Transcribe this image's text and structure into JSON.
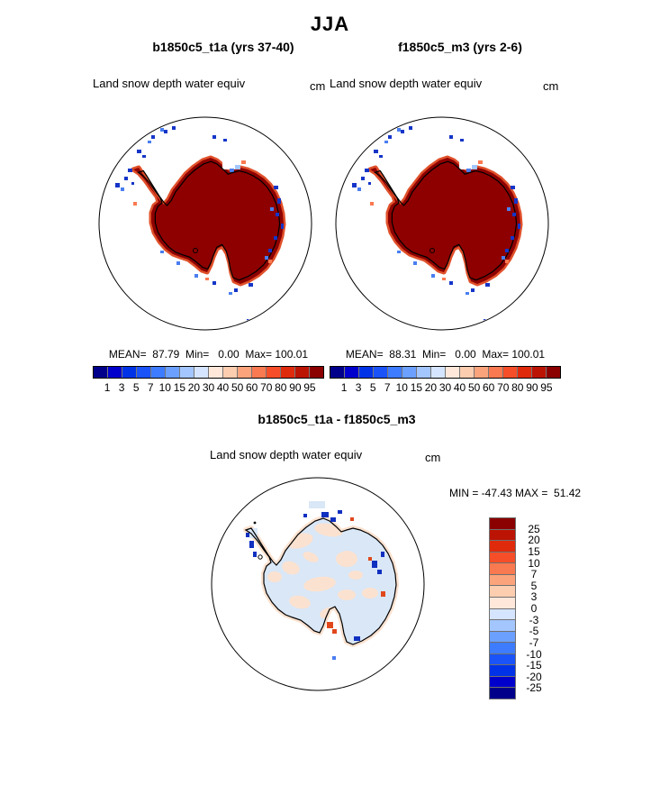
{
  "title": "JJA",
  "panels": {
    "left": {
      "title": "b1850c5_t1a (yrs 37-40)",
      "field_label": "Land snow depth water equiv",
      "units": "cm",
      "stats": "MEAN=  87.79  Min=   0.00  Max= 100.01"
    },
    "right": {
      "title": "f1850c5_m3 (yrs 2-6)",
      "field_label": "Land snow depth water equiv",
      "units": "cm",
      "stats": "MEAN=  88.31  Min=   0.00  Max= 100.01"
    },
    "diff": {
      "title": "b1850c5_t1a - f1850c5_m3",
      "field_label": "Land snow depth water equiv",
      "units": "cm",
      "stats": "MIN = -47.43 MAX =  51.42"
    }
  },
  "colorbar": {
    "tick_labels": [
      "1",
      "3",
      "5",
      "7",
      "10",
      "15",
      "20",
      "30",
      "40",
      "50",
      "60",
      "70",
      "80",
      "90",
      "95"
    ],
    "colors": [
      "#00008b",
      "#0000cd",
      "#0033e8",
      "#1a53f7",
      "#3d7cff",
      "#6ba0ff",
      "#a3c6ff",
      "#d5e5ff",
      "#ffe8da",
      "#fdcdb0",
      "#fba47c",
      "#f97950",
      "#f54e28",
      "#df2a0c",
      "#bc1404",
      "#8b0000"
    ]
  },
  "diff_colorbar": {
    "tick_labels": [
      "25",
      "20",
      "15",
      "10",
      "7",
      "5",
      "3",
      "0",
      "-3",
      "-5",
      "-7",
      "-10",
      "-15",
      "-20",
      "-25"
    ],
    "colors": [
      "#8b0000",
      "#bc1404",
      "#df2a0c",
      "#f54e28",
      "#f97950",
      "#fba47c",
      "#fdcdb0",
      "#ffe8da",
      "#d5e5ff",
      "#a3c6ff",
      "#6ba0ff",
      "#3d7cff",
      "#1a53f7",
      "#0033e8",
      "#0000cd",
      "#00008b"
    ]
  },
  "map_colors": {
    "continent_fill": "#8e0000",
    "continent_fringe": "#e0502a",
    "coastline": "#000000",
    "speck_dark_blue": "#1535c8",
    "speck_mid_blue": "#4a7ef0",
    "speck_light_blue": "#a3c6ff",
    "speck_orange": "#f97950",
    "diff_base_blue": "#d9e7f7",
    "diff_peach": "#fbe2d0",
    "diff_dark_blue": "#1030c0",
    "diff_orange": "#e0481c"
  },
  "chart_data": [
    {
      "type": "heatmap",
      "subtype": "polar-stereographic-map",
      "region": "Antarctica",
      "title": "b1850c5_t1a (yrs 37-40)",
      "variable": "Land snow depth water equiv",
      "units": "cm",
      "season": "JJA",
      "mean": 87.79,
      "min": 0.0,
      "max": 100.01,
      "levels": [
        1,
        3,
        5,
        7,
        10,
        15,
        20,
        30,
        40,
        50,
        60,
        70,
        80,
        90,
        95
      ],
      "legend_position": "below",
      "description": "Continent saturated at top level (>95 cm, dark red); scattered low values (blue) along coast and islands"
    },
    {
      "type": "heatmap",
      "subtype": "polar-stereographic-map",
      "region": "Antarctica",
      "title": "f1850c5_m3 (yrs 2-6)",
      "variable": "Land snow depth water equiv",
      "units": "cm",
      "season": "JJA",
      "mean": 88.31,
      "min": 0.0,
      "max": 100.01,
      "levels": [
        1,
        3,
        5,
        7,
        10,
        15,
        20,
        30,
        40,
        50,
        60,
        70,
        80,
        90,
        95
      ],
      "legend_position": "below",
      "description": "Nearly identical to companion panel"
    },
    {
      "type": "heatmap",
      "subtype": "polar-stereographic-map",
      "region": "Antarctica",
      "title": "b1850c5_t1a - f1850c5_m3",
      "variable": "Land snow depth water equiv difference",
      "units": "cm",
      "season": "JJA",
      "min": -47.43,
      "max": 51.42,
      "levels": [
        -25,
        -20,
        -15,
        -10,
        -7,
        -5,
        -3,
        0,
        3,
        5,
        7,
        10,
        15,
        20,
        25
      ],
      "legend_position": "right",
      "description": "Interior mottled near zero (pale blue / pale peach); strong positive and negative spots along coast"
    }
  ]
}
